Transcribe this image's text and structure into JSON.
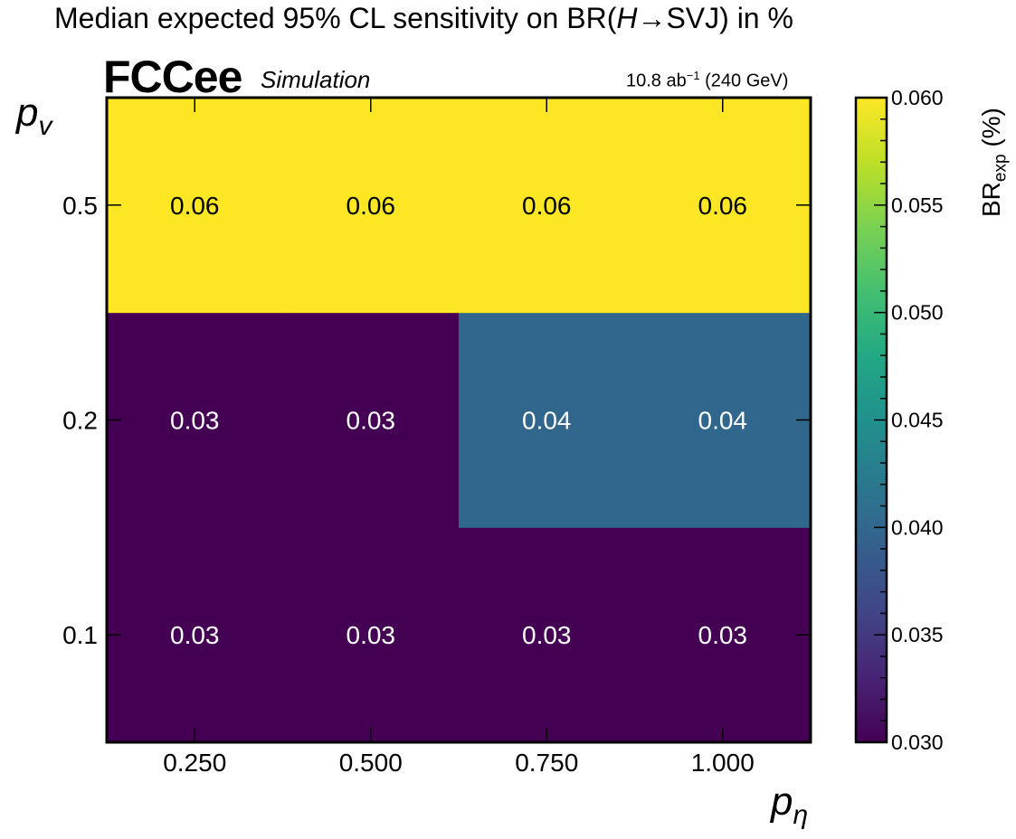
{
  "title": {
    "prefix": "Median expected 95% CL sensitivity on BR(",
    "symbol": "H",
    "arrow": "→",
    "suffix": "SVJ) in %"
  },
  "experiment": {
    "name": "FCCee",
    "status": "Simulation"
  },
  "luminosity": {
    "value": "10.8 ab",
    "exponent": "−1",
    "energy": "(240 GeV)"
  },
  "colorbar": {
    "label_main": "BR",
    "label_sub": "exp",
    "label_unit": " (%)",
    "colormap": "viridis",
    "min": 0.03,
    "max": 0.06,
    "tick_labels": [
      "0.030",
      "0.035",
      "0.040",
      "0.045",
      "0.050",
      "0.055",
      "0.060"
    ]
  },
  "chart_data": {
    "type": "heatmap",
    "title": "Median expected 95% CL sensitivity on BR(H→SVJ) in %",
    "xlabel": "p_η",
    "ylabel": "p_v",
    "x_values": [
      0.25,
      0.5,
      0.75,
      1.0
    ],
    "x_tick_labels": [
      "0.250",
      "0.500",
      "0.750",
      "1.000"
    ],
    "y_values": [
      0.1,
      0.2,
      0.5
    ],
    "y_tick_labels": [
      "0.1",
      "0.2",
      "0.5"
    ],
    "z": [
      [
        0.03,
        0.03,
        0.03,
        0.03
      ],
      [
        0.03,
        0.03,
        0.04,
        0.04
      ],
      [
        0.06,
        0.06,
        0.06,
        0.06
      ]
    ],
    "cell_labels": [
      [
        "0.03",
        "0.03",
        "0.03",
        "0.03"
      ],
      [
        "0.03",
        "0.03",
        "0.04",
        "0.04"
      ],
      [
        "0.06",
        "0.06",
        "0.06",
        "0.06"
      ]
    ],
    "zlim": [
      0.03,
      0.06
    ],
    "colorbar_label": "BR_exp (%)",
    "grid": false
  },
  "colors": {
    "low": "#440154",
    "mid": "#31688e",
    "high": "#fde725"
  }
}
